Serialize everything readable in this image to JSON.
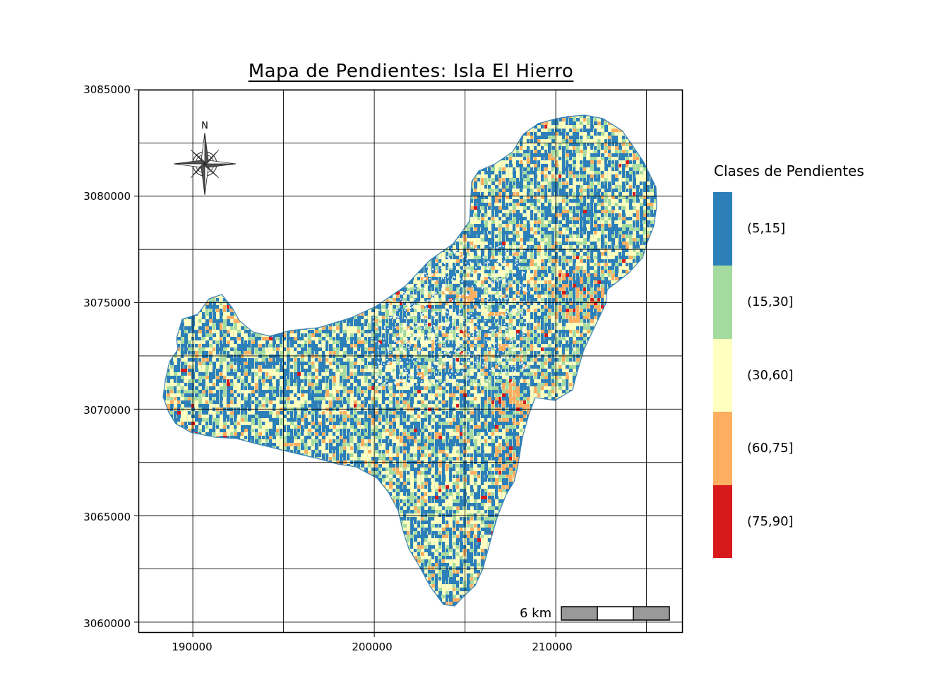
{
  "title": "Mapa de Pendientes:  Isla El Hierro",
  "y_ticks": [
    "3085000",
    "3080000",
    "3075000",
    "3070000",
    "3065000",
    "3060000"
  ],
  "x_ticks": [
    "190000",
    "200000",
    "210000"
  ],
  "north_label": "N",
  "scale_label": "6 km",
  "legend": {
    "title": "Clases de Pendientes",
    "items": [
      {
        "label": "(5,15]",
        "color": "#2c7fb8"
      },
      {
        "label": "(15,30]",
        "color": "#a6dba0"
      },
      {
        "label": "(30,60]",
        "color": "#ffffbf"
      },
      {
        "label": "(60,75]",
        "color": "#fdae61"
      },
      {
        "label": "(75,90]",
        "color": "#d7191c"
      }
    ]
  },
  "chart_data": {
    "type": "heatmap",
    "title": "Mapa de Pendientes:  Isla El Hierro",
    "xlim": [
      187000,
      217000
    ],
    "ylim": [
      3059500,
      3085000
    ],
    "x_ticks": [
      190000,
      200000,
      210000
    ],
    "y_ticks": [
      3060000,
      3065000,
      3070000,
      3075000,
      3080000,
      3085000
    ],
    "grid": true,
    "legend_placement": "right",
    "classes": [
      "(5,15]",
      "(15,30]",
      "(30,60]",
      "(60,75]",
      "(75,90]"
    ]
  }
}
